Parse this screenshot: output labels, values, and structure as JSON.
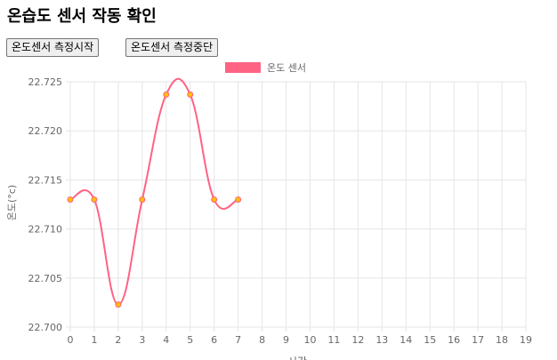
{
  "page": {
    "title": "온습도 센서 작동 확인"
  },
  "controls": {
    "start_label": "온도센서 측정시작",
    "stop_label": "온도센서 측정중단"
  },
  "colors": {
    "series_line": "#ff6384",
    "point_fill": "#ffc000",
    "point_stroke": "#ff6384",
    "grid": "#e5e5e5",
    "tick_text": "#666666"
  },
  "chart_data": {
    "type": "line",
    "title": "",
    "xlabel": "시간",
    "ylabel": "온도(°c)",
    "x": [
      0,
      1,
      2,
      3,
      4,
      5,
      6,
      7,
      8,
      9,
      10,
      11,
      12,
      13,
      14,
      15,
      16,
      17,
      18,
      19
    ],
    "yticks": [
      22.7,
      22.705,
      22.71,
      22.715,
      22.72,
      22.725
    ],
    "ylim": [
      22.7,
      22.725
    ],
    "grid": true,
    "legend_position": "top-center",
    "smooth": true,
    "series": [
      {
        "name": "온도 센서",
        "x": [
          0,
          1,
          2,
          3,
          4,
          5,
          6,
          7
        ],
        "values": [
          22.713,
          22.713,
          22.7023,
          22.713,
          22.7237,
          22.7237,
          22.713,
          22.713
        ]
      }
    ]
  }
}
